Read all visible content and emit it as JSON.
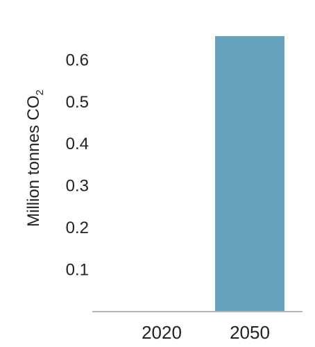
{
  "chart_data": {
    "type": "bar",
    "categories": [
      "2020",
      "2050"
    ],
    "values": [
      0,
      0.655
    ],
    "ylabel_main": "Million tonnes CO",
    "ylabel_subscript": "2",
    "ylim": [
      0,
      0.655
    ],
    "yticks": [
      0.1,
      0.2,
      0.3,
      0.4,
      0.5,
      0.6
    ],
    "ytick_labels": [
      "0.1",
      "0.2",
      "0.3",
      "0.4",
      "0.5",
      "0.6"
    ],
    "grid": false,
    "legend": "none",
    "bar_color": "#68a3bc",
    "axis_color": "#b3b3b3"
  }
}
